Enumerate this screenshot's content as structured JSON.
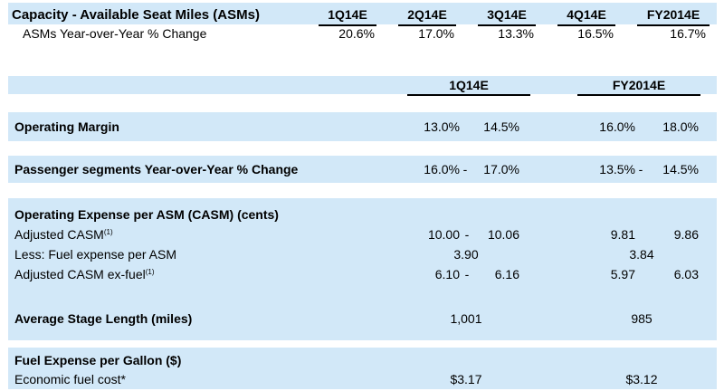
{
  "capacity": {
    "title": "Capacity - Available Seat Miles (ASMs)",
    "headers": [
      "1Q14E",
      "2Q14E",
      "3Q14E",
      "4Q14E",
      "FY2014E"
    ],
    "row_label": "ASMs Year-over-Year % Change",
    "values": [
      "20.6%",
      "17.0%",
      "13.3%",
      "16.5%",
      "16.7%"
    ]
  },
  "guidance": {
    "col_q": "1Q14E",
    "col_fy": "FY2014E",
    "operating_margin": {
      "label": "Operating Margin",
      "q_low": "13.0%",
      "q_high": "14.5%",
      "fy_low": "16.0%",
      "fy_high": "18.0%"
    },
    "passenger": {
      "label": "Passenger segments Year-over-Year % Change",
      "q_low": "16.0%",
      "q_sep": "-",
      "q_high": "17.0%",
      "fy_low": "13.5%",
      "fy_sep": "-",
      "fy_high": "14.5%"
    },
    "casm": {
      "label": "Operating Expense per ASM (CASM) (cents)",
      "adjusted": {
        "label": "Adjusted CASM",
        "note": "(1)",
        "q_low": "10.00",
        "q_sep": "-",
        "q_high": "10.06",
        "fy_low": "9.81",
        "fy_high": "9.86"
      },
      "fuel": {
        "label": "Less: Fuel expense per ASM",
        "q": "3.90",
        "fy": "3.84"
      },
      "ex_fuel": {
        "label": "Adjusted CASM ex-fuel",
        "note": "(1)",
        "q_low": "6.10",
        "q_sep": "-",
        "q_high": "6.16",
        "fy_low": "5.97",
        "fy_high": "6.03"
      }
    },
    "stage_length": {
      "label": "Average Stage Length (miles)",
      "q": "1,001",
      "fy": "985"
    },
    "fuel_gallon": {
      "label": "Fuel Expense per Gallon ($)",
      "economic": {
        "label": "Economic fuel cost*",
        "q": "$3.17",
        "fy": "$3.12"
      }
    }
  }
}
